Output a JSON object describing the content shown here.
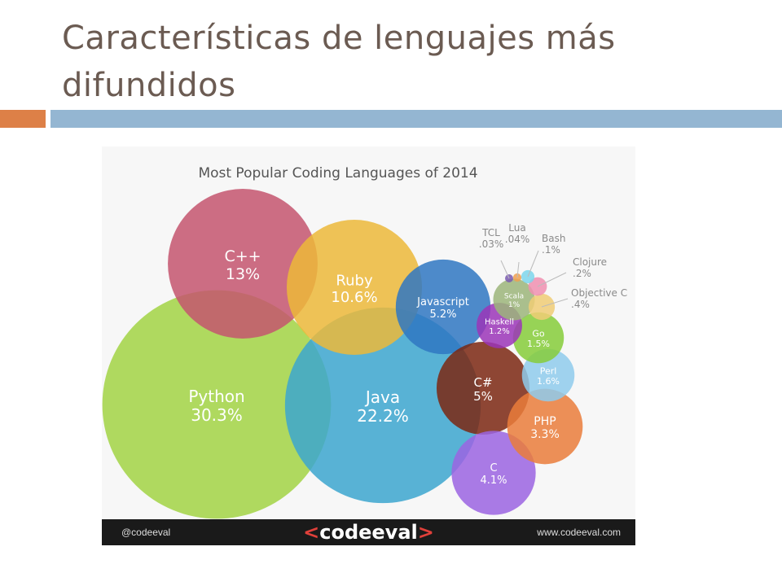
{
  "slide": {
    "title": "Características de lenguajes más difundidos"
  },
  "footer": {
    "handle": "@codeeval",
    "logo_left": "<",
    "logo_text": "codeeval",
    "logo_right": ">",
    "website": "www.codeeval.com"
  },
  "chart_data": {
    "type": "bubble",
    "title": "Most Popular Coding Languages of 2014",
    "series": [
      {
        "name": "Python",
        "label": "30.3%",
        "value": 30.3,
        "color": "#a2d444"
      },
      {
        "name": "Java",
        "label": "22.2%",
        "value": 22.2,
        "color": "#3ca6cf"
      },
      {
        "name": "C++",
        "label": "13%",
        "value": 13,
        "color": "#c4556f"
      },
      {
        "name": "Ruby",
        "label": "10.6%",
        "value": 10.6,
        "color": "#ecb93a"
      },
      {
        "name": "Javascript",
        "label": "5.2%",
        "value": 5.2,
        "color": "#2f77c2"
      },
      {
        "name": "C#",
        "label": "5%",
        "value": 5,
        "color": "#7b2712"
      },
      {
        "name": "C",
        "label": "4.1%",
        "value": 4.1,
        "color": "#9b64e2"
      },
      {
        "name": "PHP",
        "label": "3.3%",
        "value": 3.3,
        "color": "#ea7c3b"
      },
      {
        "name": "Perl",
        "label": "1.6%",
        "value": 1.6,
        "color": "#8fcbec"
      },
      {
        "name": "Go",
        "label": "1.5%",
        "value": 1.5,
        "color": "#86cc3a"
      },
      {
        "name": "Haskell",
        "label": "1.2%",
        "value": 1.2,
        "color": "#9b35b8"
      },
      {
        "name": "Scala",
        "label": "1%",
        "value": 1,
        "color": "#9cb57a"
      },
      {
        "name": "Objective C",
        "label": ".4%",
        "value": 0.4,
        "color": "#f0cc76"
      },
      {
        "name": "Clojure",
        "label": ".2%",
        "value": 0.2,
        "color": "#f08fb0"
      },
      {
        "name": "Bash",
        "label": ".1%",
        "value": 0.1,
        "color": "#7cd6ec"
      },
      {
        "name": "Lua",
        "label": ".04%",
        "value": 0.04,
        "color": "#f0a050"
      },
      {
        "name": "TCL",
        "label": ".03%",
        "value": 0.03,
        "color": "#7a5ab0"
      }
    ]
  }
}
